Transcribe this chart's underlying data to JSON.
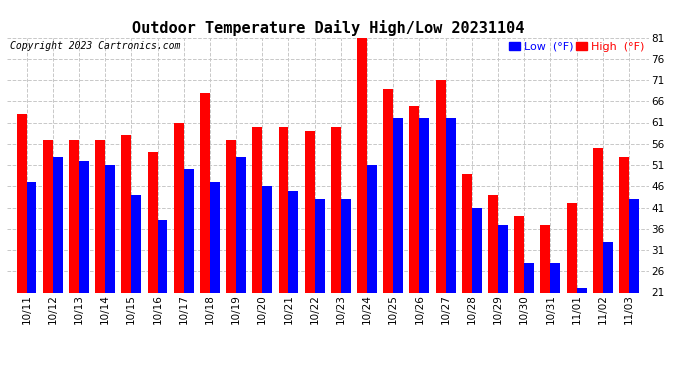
{
  "title": "Outdoor Temperature Daily High/Low 20231104",
  "copyright": "Copyright 2023 Cartronics.com",
  "legend_low_label": "Low  (°F)",
  "legend_high_label": "High  (°F)",
  "ylim": [
    21.0,
    81.0
  ],
  "yticks": [
    21.0,
    26.0,
    31.0,
    36.0,
    41.0,
    46.0,
    51.0,
    56.0,
    61.0,
    66.0,
    71.0,
    76.0,
    81.0
  ],
  "categories": [
    "10/11",
    "10/12",
    "10/13",
    "10/14",
    "10/15",
    "10/16",
    "10/17",
    "10/18",
    "10/19",
    "10/20",
    "10/21",
    "10/22",
    "10/23",
    "10/24",
    "10/25",
    "10/26",
    "10/27",
    "10/28",
    "10/29",
    "10/30",
    "10/31",
    "11/01",
    "11/02",
    "11/03"
  ],
  "high_values": [
    63,
    57,
    57,
    57,
    58,
    54,
    61,
    68,
    57,
    60,
    60,
    59,
    60,
    82,
    69,
    65,
    71,
    49,
    44,
    39,
    37,
    42,
    55,
    53
  ],
  "low_values": [
    47,
    53,
    52,
    51,
    44,
    38,
    50,
    47,
    53,
    46,
    45,
    43,
    43,
    51,
    62,
    62,
    62,
    41,
    37,
    28,
    28,
    22,
    33,
    43
  ],
  "high_color": "#ff0000",
  "low_color": "#0000ff",
  "bg_color": "#ffffff",
  "grid_color": "#c8c8c8",
  "title_fontsize": 11,
  "tick_fontsize": 7.5,
  "copyright_fontsize": 7,
  "legend_fontsize": 8,
  "bar_width": 0.38
}
